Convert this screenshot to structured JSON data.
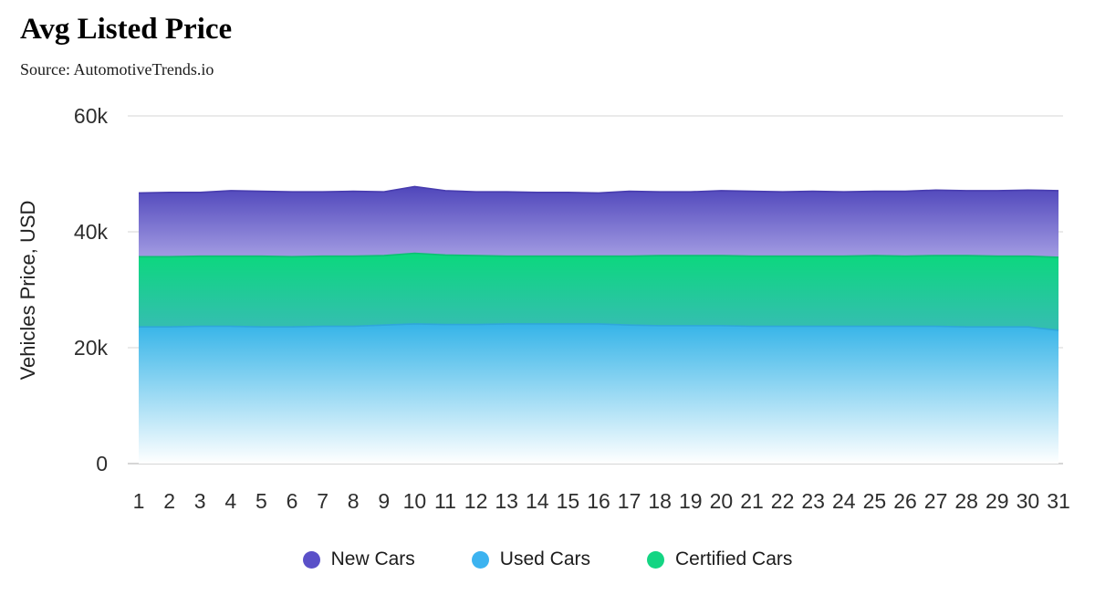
{
  "header": {
    "title": "Avg Listed Price",
    "source": "Source: AutomotiveTrends.io"
  },
  "chart_data": {
    "type": "area",
    "title": "Avg Listed Price",
    "subtitle": "Source: AutomotiveTrends.io",
    "ylabel": "Vehicles Price, USD",
    "xlabel": "",
    "units": "thousand USD",
    "ylim": [
      0,
      60
    ],
    "grid": true,
    "legend_position": "bottom",
    "x": [
      1,
      2,
      3,
      4,
      5,
      6,
      7,
      8,
      9,
      10,
      11,
      12,
      13,
      14,
      15,
      16,
      17,
      18,
      19,
      20,
      21,
      22,
      23,
      24,
      25,
      26,
      27,
      28,
      29,
      30,
      31
    ],
    "yticks": [
      {
        "label": "0",
        "value": 0
      },
      {
        "label": "20k",
        "value": 20
      },
      {
        "label": "40k",
        "value": 40
      },
      {
        "label": "60k",
        "value": 60
      }
    ],
    "series": [
      {
        "name": "New Cars",
        "color": "#5a50c8",
        "gradient": [
          "#4f46bb",
          "#9e97e0"
        ],
        "edge": "#483daf",
        "values": [
          46.7,
          46.8,
          46.8,
          47.1,
          47.0,
          46.9,
          46.9,
          47.0,
          46.9,
          47.8,
          47.1,
          46.9,
          46.9,
          46.8,
          46.8,
          46.7,
          47.0,
          46.9,
          46.9,
          47.1,
          47.0,
          46.9,
          47.0,
          46.9,
          47.0,
          47.0,
          47.2,
          47.1,
          47.1,
          47.2,
          47.1
        ]
      },
      {
        "name": "Used Cars",
        "color": "#3cb3f0",
        "gradient": [
          "#35b4e8",
          "#ffffff"
        ],
        "edge": "#2fa6da",
        "values": [
          23.6,
          23.6,
          23.7,
          23.7,
          23.6,
          23.6,
          23.7,
          23.7,
          23.9,
          24.1,
          24.0,
          24.0,
          24.1,
          24.1,
          24.1,
          24.1,
          23.9,
          23.8,
          23.8,
          23.8,
          23.7,
          23.7,
          23.7,
          23.7,
          23.7,
          23.7,
          23.7,
          23.6,
          23.6,
          23.6,
          23.0
        ]
      },
      {
        "name": "Certified Cars",
        "color": "#14d583",
        "gradient": [
          "#0bd87d",
          "#33bfae"
        ],
        "edge": "#0cc072",
        "values": [
          35.7,
          35.7,
          35.8,
          35.8,
          35.8,
          35.7,
          35.8,
          35.8,
          35.9,
          36.3,
          36.0,
          35.9,
          35.8,
          35.8,
          35.8,
          35.8,
          35.8,
          35.9,
          35.9,
          35.9,
          35.8,
          35.8,
          35.8,
          35.8,
          35.9,
          35.8,
          35.9,
          35.9,
          35.8,
          35.8,
          35.6
        ]
      }
    ]
  }
}
